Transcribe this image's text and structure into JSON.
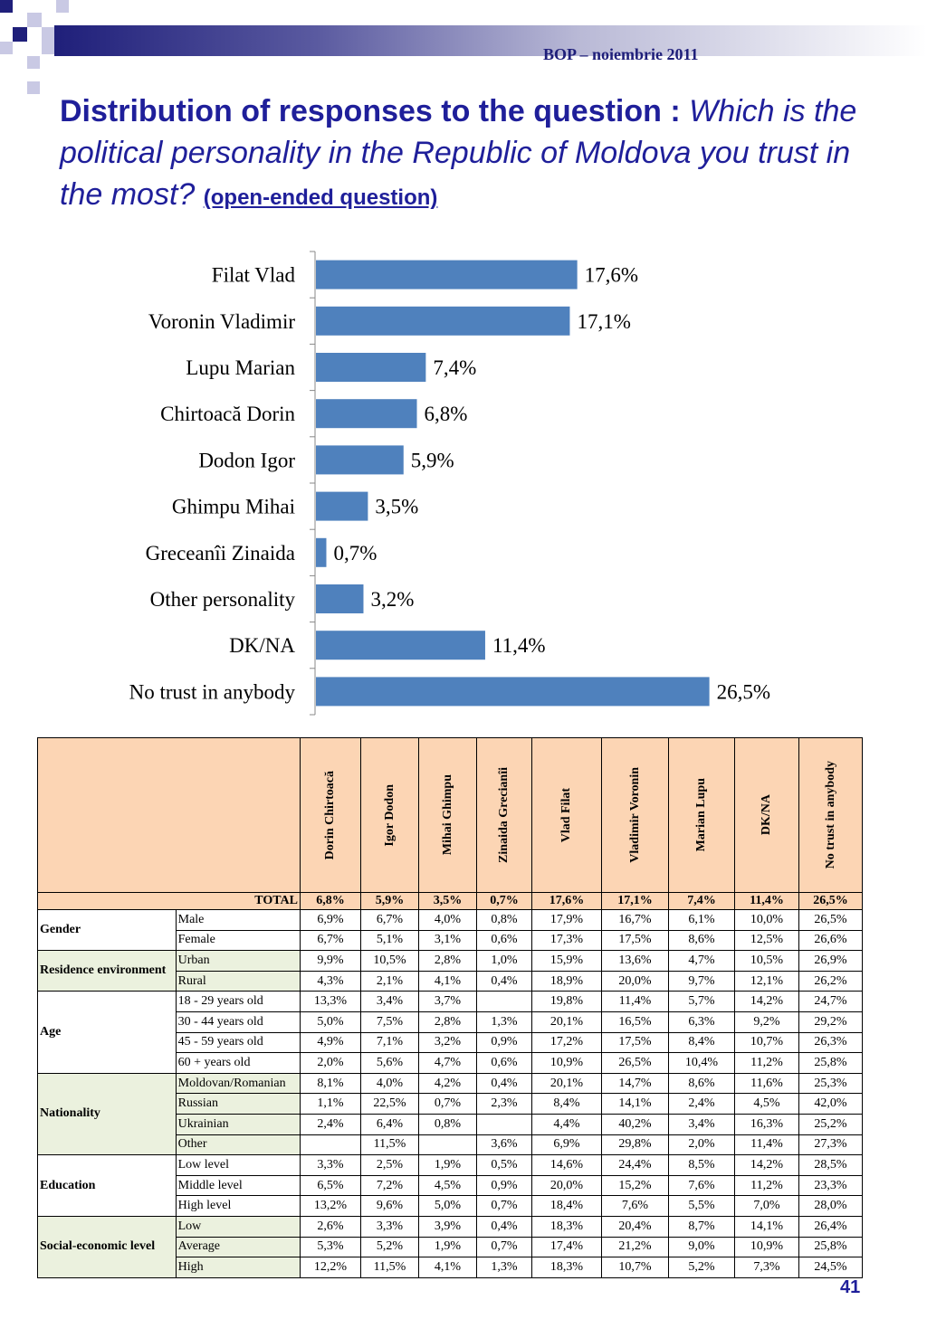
{
  "header": {
    "source": "BOP  – noiembrie 2011"
  },
  "title": {
    "bold_part": "Distribution of responses to the question : ",
    "italic_part": "Which is the political personality in the Republic of Moldova you trust in the most? ",
    "note": "(open-ended question)"
  },
  "chart_data": {
    "type": "bar",
    "orientation": "horizontal",
    "categories": [
      "Filat Vlad",
      "Voronin Vladimir",
      "Lupu Marian",
      "Chirtoacă Dorin",
      "Dodon Igor",
      "Ghimpu Mihai",
      "Greceanîi Zinaida",
      "Other personality",
      "DK/NA",
      "No trust in anybody"
    ],
    "values": [
      17.6,
      17.1,
      7.4,
      6.8,
      5.9,
      3.5,
      0.7,
      3.2,
      11.4,
      26.5
    ],
    "labels": [
      "17,6%",
      "17,1%",
      "7,4%",
      "6,8%",
      "5,9%",
      "3,5%",
      "0,7%",
      "3,2%",
      "11,4%",
      "26,5%"
    ],
    "bar_color": "#4f81bd",
    "xlim": [
      0,
      30
    ],
    "grid": false
  },
  "table": {
    "columns": [
      "Dorin Chirtoacă",
      "Igor Dodon",
      "Mihai Ghimpu",
      "Zinaida Grecianîi",
      "Vlad Filat",
      "Vladimir Voronin",
      "Marian Lupu",
      "DK/NA",
      "No trust in anybody"
    ],
    "total_label": "TOTAL",
    "total": [
      "6,8%",
      "5,9%",
      "3,5%",
      "0,7%",
      "17,6%",
      "17,1%",
      "7,4%",
      "11,4%",
      "26,5%"
    ],
    "groups": [
      {
        "name": "Gender",
        "green": false,
        "rows": [
          {
            "label": "Male",
            "values": [
              "6,9%",
              "6,7%",
              "4,0%",
              "0,8%",
              "17,9%",
              "16,7%",
              "6,1%",
              "10,0%",
              "26,5%"
            ]
          },
          {
            "label": "Female",
            "values": [
              "6,7%",
              "5,1%",
              "3,1%",
              "0,6%",
              "17,3%",
              "17,5%",
              "8,6%",
              "12,5%",
              "26,6%"
            ]
          }
        ]
      },
      {
        "name": "Residence environment",
        "green": true,
        "rows": [
          {
            "label": "Urban",
            "values": [
              "9,9%",
              "10,5%",
              "2,8%",
              "1,0%",
              "15,9%",
              "13,6%",
              "4,7%",
              "10,5%",
              "26,9%"
            ]
          },
          {
            "label": "Rural",
            "values": [
              "4,3%",
              "2,1%",
              "4,1%",
              "0,4%",
              "18,9%",
              "20,0%",
              "9,7%",
              "12,1%",
              "26,2%"
            ]
          }
        ]
      },
      {
        "name": "Age",
        "green": false,
        "rows": [
          {
            "label": "18 - 29 years old",
            "values": [
              "13,3%",
              "3,4%",
              "3,7%",
              "",
              "19,8%",
              "11,4%",
              "5,7%",
              "14,2%",
              "24,7%"
            ]
          },
          {
            "label": "30 - 44 years old",
            "values": [
              "5,0%",
              "7,5%",
              "2,8%",
              "1,3%",
              "20,1%",
              "16,5%",
              "6,3%",
              "9,2%",
              "29,2%"
            ]
          },
          {
            "label": "45 - 59 years old",
            "values": [
              "4,9%",
              "7,1%",
              "3,2%",
              "0,9%",
              "17,2%",
              "17,5%",
              "8,4%",
              "10,7%",
              "26,3%"
            ]
          },
          {
            "label": "60 + years old",
            "values": [
              "2,0%",
              "5,6%",
              "4,7%",
              "0,6%",
              "10,9%",
              "26,5%",
              "10,4%",
              "11,2%",
              "25,8%"
            ]
          }
        ]
      },
      {
        "name": "Nationality",
        "green": true,
        "rows": [
          {
            "label": "Moldovan/Romanian",
            "values": [
              "8,1%",
              "4,0%",
              "4,2%",
              "0,4%",
              "20,1%",
              "14,7%",
              "8,6%",
              "11,6%",
              "25,3%"
            ]
          },
          {
            "label": "Russian",
            "values": [
              "1,1%",
              "22,5%",
              "0,7%",
              "2,3%",
              "8,4%",
              "14,1%",
              "2,4%",
              "4,5%",
              "42,0%"
            ]
          },
          {
            "label": "Ukrainian",
            "values": [
              "2,4%",
              "6,4%",
              "0,8%",
              "",
              "4,4%",
              "40,2%",
              "3,4%",
              "16,3%",
              "25,2%"
            ]
          },
          {
            "label": "Other",
            "values": [
              "",
              "11,5%",
              "",
              "3,6%",
              "6,9%",
              "29,8%",
              "2,0%",
              "11,4%",
              "27,3%"
            ]
          }
        ]
      },
      {
        "name": "Education",
        "green": false,
        "rows": [
          {
            "label": "Low level",
            "values": [
              "3,3%",
              "2,5%",
              "1,9%",
              "0,5%",
              "14,6%",
              "24,4%",
              "8,5%",
              "14,2%",
              "28,5%"
            ]
          },
          {
            "label": "Middle level",
            "values": [
              "6,5%",
              "7,2%",
              "4,5%",
              "0,9%",
              "20,0%",
              "15,2%",
              "7,6%",
              "11,2%",
              "23,3%"
            ]
          },
          {
            "label": "High level",
            "values": [
              "13,2%",
              "9,6%",
              "5,0%",
              "0,7%",
              "18,4%",
              "7,6%",
              "5,5%",
              "7,0%",
              "28,0%"
            ]
          }
        ]
      },
      {
        "name": "Social-economic level",
        "green": true,
        "rows": [
          {
            "label": "Low",
            "values": [
              "2,6%",
              "3,3%",
              "3,9%",
              "0,4%",
              "18,3%",
              "20,4%",
              "8,7%",
              "14,1%",
              "26,4%"
            ]
          },
          {
            "label": "Average",
            "values": [
              "5,3%",
              "5,2%",
              "1,9%",
              "0,7%",
              "17,4%",
              "21,2%",
              "9,0%",
              "10,9%",
              "25,8%"
            ]
          },
          {
            "label": "High",
            "values": [
              "12,2%",
              "11,5%",
              "4,1%",
              "1,3%",
              "18,3%",
              "10,7%",
              "5,2%",
              "7,3%",
              "24,5%"
            ]
          }
        ]
      }
    ]
  },
  "page_number": "41"
}
